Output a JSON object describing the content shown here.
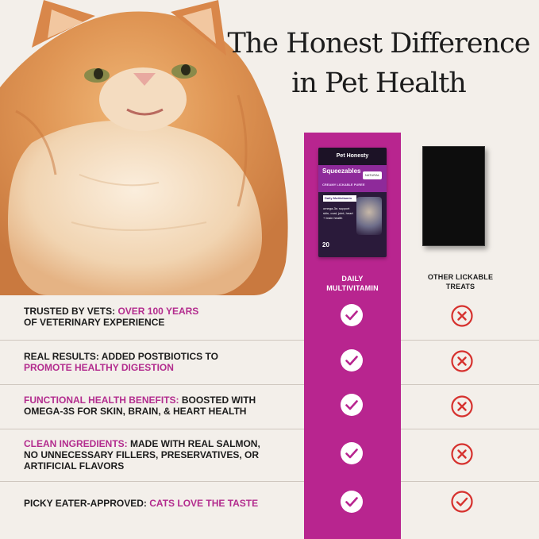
{
  "heading": {
    "line1": "The Honest Difference",
    "line2": "in Pet Health"
  },
  "product": {
    "brand": "Pet Honesty",
    "name": "Squeezables",
    "subtitle": "CREAMY LICKABLE PUREE",
    "badge": "NATURAL",
    "label": "Daily Multivitamin",
    "benefits": "omega-3s: support skin, coat, joint, heart + brain health",
    "count": "20"
  },
  "columns": {
    "brand_label_line1": "DAILY",
    "brand_label_line2": "MULTIVITAMIN",
    "other_label_line1": "OTHER LICKABLE",
    "other_label_line2": "TREATS"
  },
  "rows": [
    {
      "highlight_first": false,
      "lead": "TRUSTED BY VETS: ",
      "highlight": "OVER 100 YEARS",
      "tail": "OF VETERINARY EXPERIENCE",
      "brand_icon": "check-circle-icon",
      "other_icon": "x-circle-icon"
    },
    {
      "lead": "REAL RESULTS: ADDED POSTBIOTICS TO",
      "highlight": "PROMOTE HEALTHY DIGESTION",
      "tail": "",
      "brand_icon": "check-circle-icon",
      "other_icon": "x-circle-icon"
    },
    {
      "highlight": "FUNCTIONAL HEALTH BENEFITS:",
      "lead": " BOOSTED WITH",
      "tail": "OMEGA-3S FOR SKIN, BRAIN, & HEART HEALTH",
      "brand_icon": "check-circle-icon",
      "other_icon": "x-circle-icon"
    },
    {
      "highlight": "CLEAN INGREDIENTS:",
      "lead": " MADE WITH REAL",
      "tail": "SALMON, NO UNNECESSARY FILLERS, PRESERVATIVES, OR ARTIFICIAL FLAVORS",
      "brand_icon": "check-circle-icon",
      "other_icon": "x-circle-icon"
    },
    {
      "lead": "PICKY EATER-APPROVED: ",
      "highlight": "CATS LOVE THE TASTE",
      "tail": "",
      "brand_icon": "check-circle-icon",
      "other_icon": "check-circle-icon"
    }
  ],
  "colors": {
    "brand_magenta": "#b8258f",
    "highlight": "#b32c8e",
    "x_red": "#d6312e",
    "background": "#f3efea"
  }
}
